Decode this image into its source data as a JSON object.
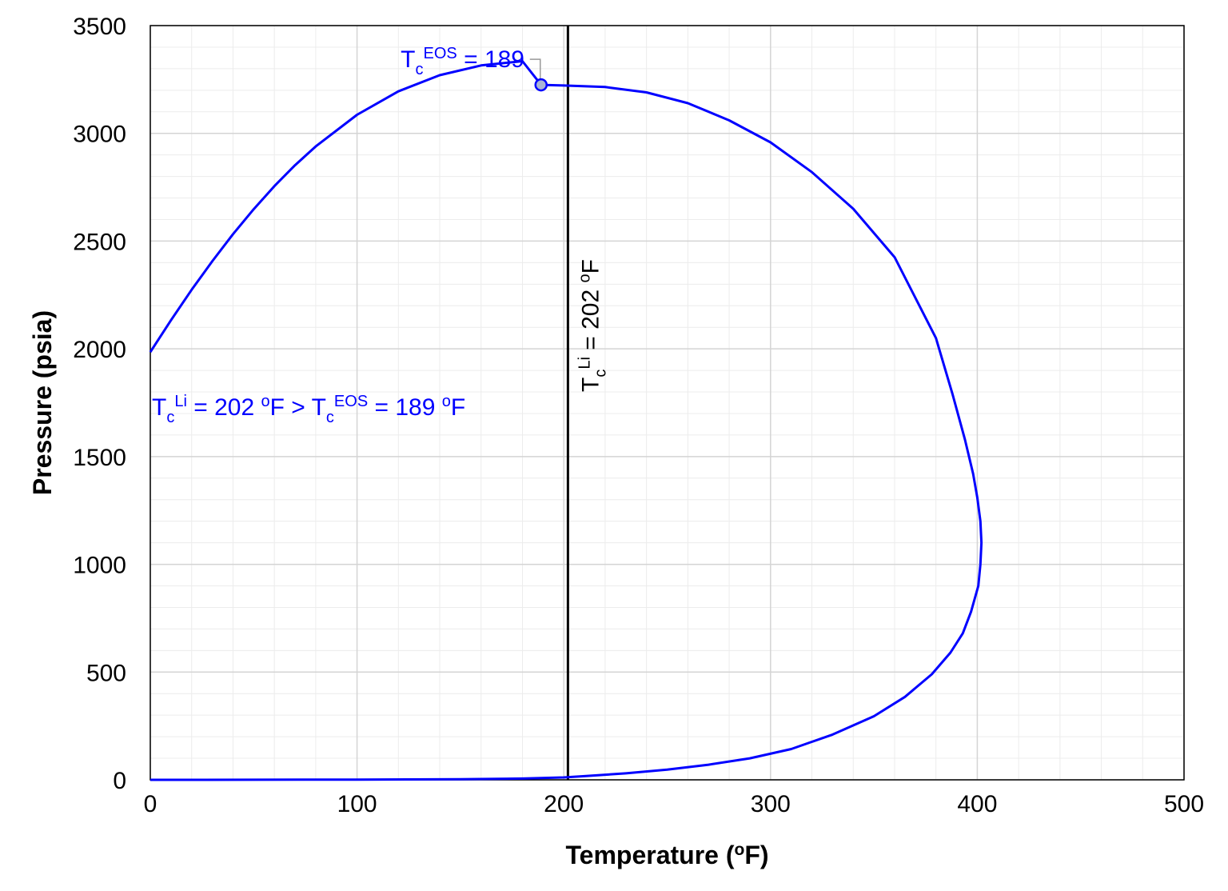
{
  "chart_data": {
    "type": "line",
    "title": "",
    "xlabel": {
      "main": "Temperature (",
      "sup": "o",
      "tail": "F)"
    },
    "ylabel": "Pressure (psia)",
    "xlim": [
      0,
      500
    ],
    "ylim": [
      0,
      3500
    ],
    "x_ticks": [
      0,
      100,
      200,
      300,
      400,
      500
    ],
    "y_ticks": [
      0,
      500,
      1000,
      1500,
      2000,
      2500,
      3000,
      3500
    ],
    "x_minor_step": 20,
    "y_minor_step": 100,
    "grid": true,
    "colors": {
      "curve": "#0000ff",
      "vline": "#000000",
      "grid_major": "#d4d4d4",
      "grid_minor": "#ececec",
      "marker_fill": "#a9b4d6",
      "marker_edge": "#0000ff",
      "leader": "#999999"
    },
    "series": [
      {
        "color": "#0000ff",
        "points": [
          [
            0,
            1985
          ],
          [
            10,
            2133
          ],
          [
            20,
            2274
          ],
          [
            30,
            2407
          ],
          [
            40,
            2532
          ],
          [
            50,
            2648
          ],
          [
            60,
            2755
          ],
          [
            70,
            2852
          ],
          [
            80,
            2939
          ],
          [
            100,
            3086
          ],
          [
            120,
            3195
          ],
          [
            140,
            3270
          ],
          [
            160,
            3315
          ],
          [
            180,
            3335
          ],
          [
            189,
            3225
          ],
          [
            200,
            3222
          ],
          [
            220,
            3215
          ],
          [
            240,
            3190
          ],
          [
            260,
            3140
          ],
          [
            280,
            3060
          ],
          [
            300,
            2958
          ],
          [
            320,
            2820
          ],
          [
            340,
            2650
          ],
          [
            360,
            2425
          ],
          [
            380,
            2050
          ],
          [
            388,
            1790
          ],
          [
            394,
            1580
          ],
          [
            398,
            1420
          ],
          [
            400,
            1310
          ],
          [
            401.5,
            1200
          ],
          [
            402,
            1100
          ],
          [
            401.5,
            1000
          ],
          [
            400.5,
            900
          ],
          [
            397,
            780
          ],
          [
            393,
            680
          ],
          [
            387,
            590
          ],
          [
            378,
            490
          ],
          [
            365,
            385
          ],
          [
            350,
            295
          ],
          [
            330,
            210
          ],
          [
            310,
            143
          ],
          [
            290,
            100
          ],
          [
            270,
            70
          ],
          [
            250,
            47
          ],
          [
            230,
            30
          ],
          [
            210,
            17
          ],
          [
            200,
            11
          ],
          [
            180,
            6
          ],
          [
            150,
            3
          ],
          [
            100,
            1
          ],
          [
            50,
            0.3
          ],
          [
            0,
            0
          ]
        ]
      }
    ],
    "critical_point": {
      "x": 189,
      "y": 3225
    },
    "vertical_line": {
      "x": 202
    },
    "annotations": {
      "tc_eos_point": {
        "base": "T",
        "sub": "c",
        "sup": "EOS",
        "tail": " = 189"
      },
      "tc_li_line": {
        "base": "T",
        "sub": "c",
        "sup": "Li",
        "tail": " = 202 ",
        "deg": "o",
        "unit": "F"
      },
      "comparison": {
        "part1_base": "T",
        "part1_sub": "c",
        "part1_sup": "Li",
        "part1_tail": " = 202 ",
        "deg1": "o",
        "mid": "F > T",
        "part2_sub": "c",
        "part2_sup": "EOS",
        "part2_tail": " = 189 ",
        "deg2": "o",
        "end": "F"
      }
    }
  }
}
